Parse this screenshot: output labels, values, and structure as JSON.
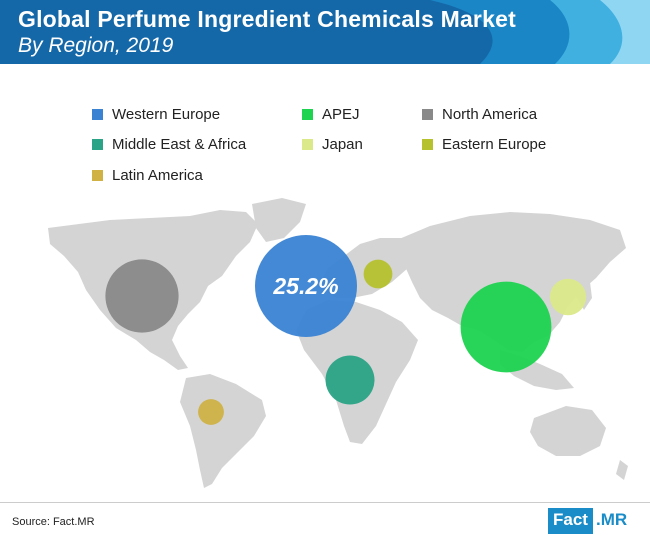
{
  "header": {
    "title": "Global Perfume Ingredient Chemicals Market",
    "subtitle": "By Region, 2019",
    "bg": "#1568a8",
    "waves": [
      "#1a86c6",
      "#3fb0e0",
      "#8fd6f3"
    ]
  },
  "chart_data": {
    "type": "bubble-map",
    "title": "Global Perfume Ingredient Chemicals Market",
    "subtitle": "By Region, 2019",
    "legend_position": "top",
    "series": [
      {
        "name": "Western Europe",
        "color": "#3a83d3",
        "label": "25.2%",
        "value": 25.2
      },
      {
        "name": "APEJ",
        "color": "#1ed350",
        "label": "",
        "value": 20.0
      },
      {
        "name": "North America",
        "color": "#898989",
        "label": "",
        "value": 13.0
      },
      {
        "name": "Middle East & Africa",
        "color": "#2aa386",
        "label": "",
        "value": 5.8
      },
      {
        "name": "Japan",
        "color": "#dbe98a",
        "label": "",
        "value": 3.2
      },
      {
        "name": "Eastern Europe",
        "color": "#b6c12e",
        "label": "",
        "value": 2.0
      },
      {
        "name": "Latin America",
        "color": "#cfb144",
        "label": "",
        "value": 1.6
      }
    ]
  },
  "map": {
    "land_color": "#d4d4d4"
  },
  "footer": {
    "source": "Source: Fact.MR",
    "logo_left": "Fact",
    "logo_right": ".MR"
  }
}
